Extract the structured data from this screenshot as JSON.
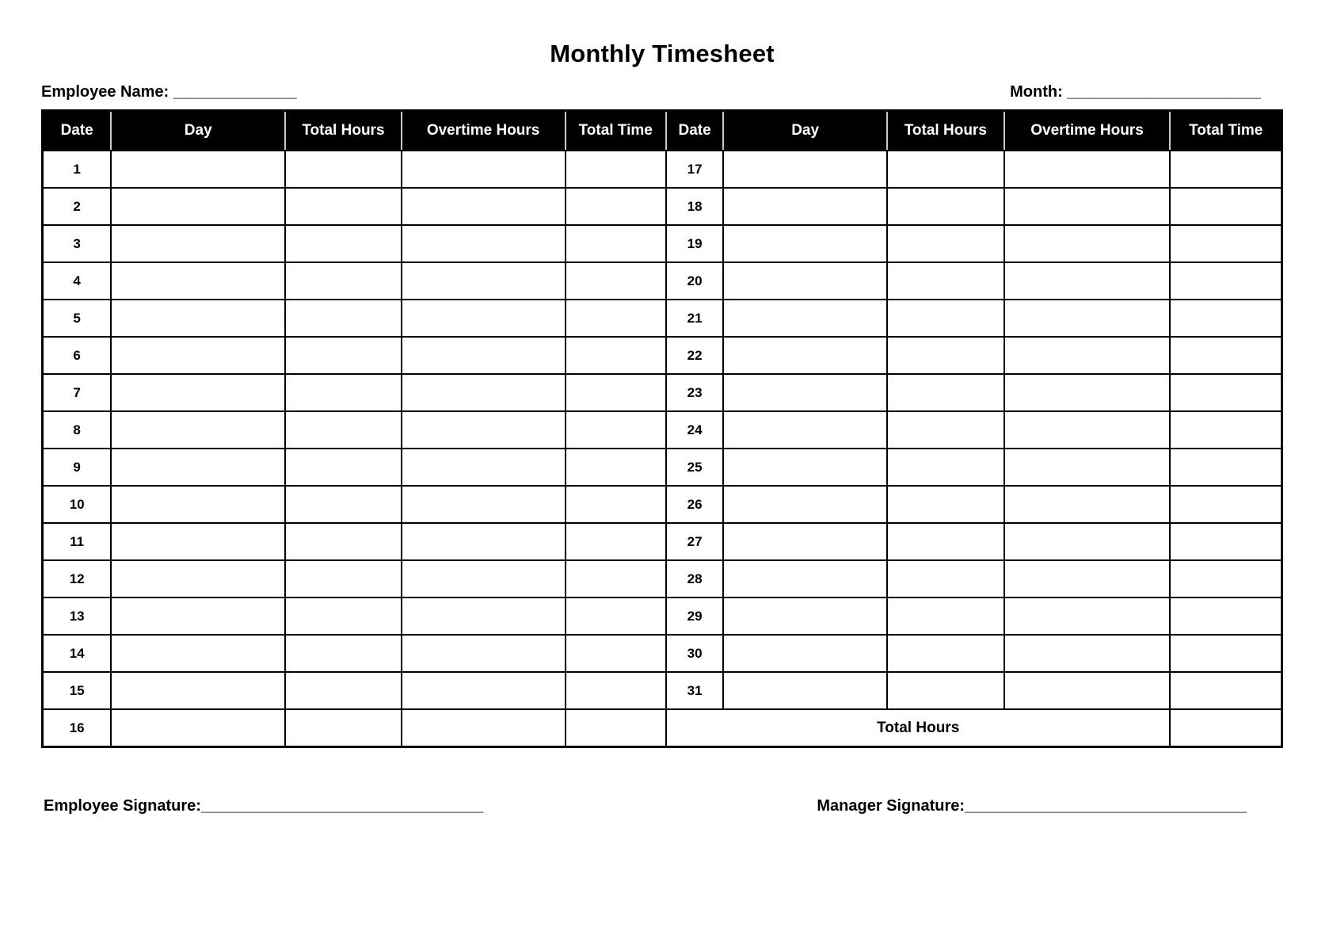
{
  "title": "Monthly Timesheet",
  "fields": {
    "employee_name": {
      "label": "Employee Name: ",
      "line": "______________"
    },
    "month": {
      "label": "Month: ",
      "line": "______________________"
    }
  },
  "table": {
    "columns": [
      "Date",
      "Day",
      "Total Hours",
      "Overtime Hours",
      "Total Time"
    ],
    "left_dates": [
      "1",
      "2",
      "3",
      "4",
      "5",
      "6",
      "7",
      "8",
      "9",
      "10",
      "11",
      "12",
      "13",
      "14",
      "15",
      "16"
    ],
    "right_dates": [
      "17",
      "18",
      "19",
      "20",
      "21",
      "22",
      "23",
      "24",
      "25",
      "26",
      "27",
      "28",
      "29",
      "30",
      "31"
    ],
    "total_row_label": "Total Hours"
  },
  "signatures": {
    "employee": {
      "label": "Employee Signature:",
      "line": "________________________________"
    },
    "manager": {
      "label": "Manager Signature:",
      "line": "________________________________"
    }
  },
  "colors": {
    "header_bg": "#000000",
    "header_text": "#ffffff",
    "grid_line": "#000000",
    "page_bg": "#ffffff"
  }
}
